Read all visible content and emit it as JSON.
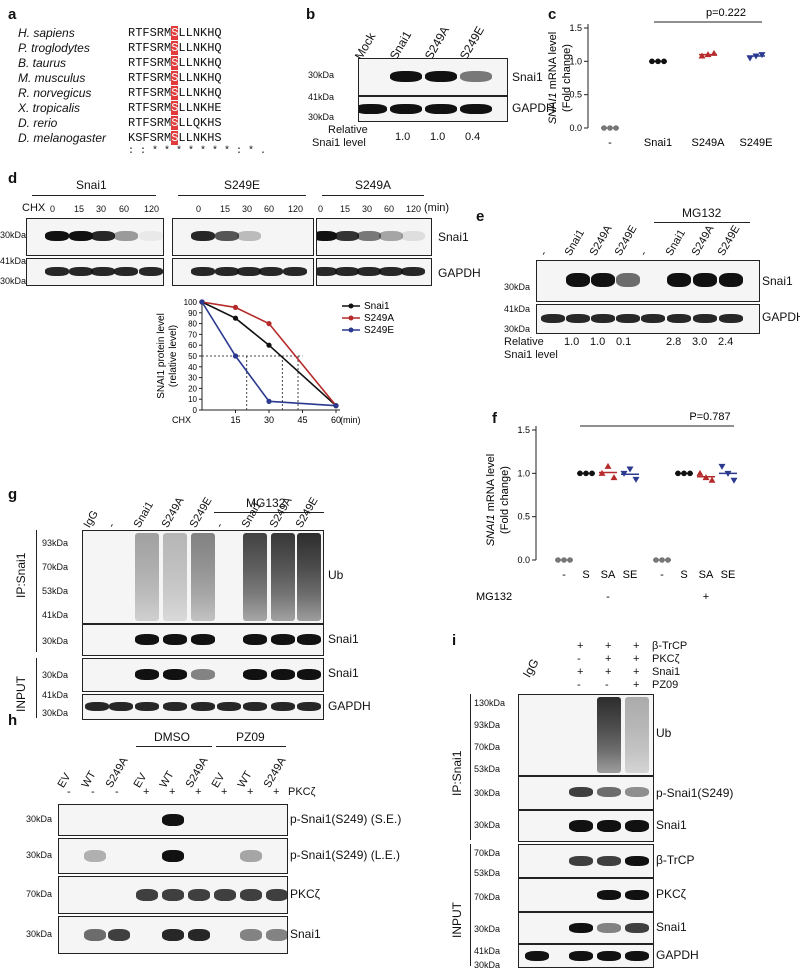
{
  "panels": {
    "a": {
      "label": "a",
      "rows": [
        {
          "species": "H. sapiens",
          "pre": "RTFSRM",
          "site": "S",
          "post": "LLNKHQ"
        },
        {
          "species": "P. troglodytes",
          "pre": "RTFSRM",
          "site": "S",
          "post": "LLNKHQ"
        },
        {
          "species": "B. taurus",
          "pre": "RTFSRM",
          "site": "S",
          "post": "LLNKHQ"
        },
        {
          "species": "M. musculus",
          "pre": "RTFSRM",
          "site": "S",
          "post": "LLNKHQ"
        },
        {
          "species": "R. norvegicus",
          "pre": "RTFSRM",
          "site": "S",
          "post": "LLNKHQ"
        },
        {
          "species": "X. tropicalis",
          "pre": "RTFSRM",
          "site": "S",
          "post": "LLNKHE"
        },
        {
          "species": "D. rerio",
          "pre": "RTFSRM",
          "site": "S",
          "post": "LLQKHS"
        },
        {
          "species": "D. melanogaster",
          "pre": "KSFSRM",
          "site": "S",
          "post": "LLNKHS"
        }
      ],
      "consensus": ": :  * * * * * * * : * ."
    },
    "b": {
      "label": "b",
      "lanes": [
        "Mock",
        "Snai1",
        "S249A",
        "S249E"
      ],
      "mw": [
        "30kDa",
        "41kDa",
        "30kDa"
      ],
      "bands": [
        "Snai1",
        "GAPDH"
      ],
      "relative_label": [
        "Relative",
        "Snai1 level"
      ],
      "relative_values": [
        "1.0",
        "1.0",
        "0.4"
      ]
    },
    "c": {
      "label": "c",
      "ylabel_gene": "SNAI1",
      "ylabel_rest": " mRNA level",
      "ylabel2": "(Fold change)",
      "yticks": [
        "0.0",
        "0.5",
        "1.0",
        "1.5"
      ],
      "categories": [
        "-",
        "Snai1",
        "S249A",
        "S249E"
      ],
      "pvalue": "p=0.222"
    },
    "d": {
      "label": "d",
      "groups": [
        "Snai1",
        "S249E",
        "S249A"
      ],
      "chx": "CHX",
      "timepoints": [
        "0",
        "15",
        "30",
        "60",
        "120"
      ],
      "unit": "(min)",
      "mw": [
        "30kDa",
        "41kDa",
        "30kDa"
      ],
      "bands": [
        "Snai1",
        "GAPDH"
      ],
      "plot_ylabel": [
        "SNAI1 protein level",
        "(relative level)"
      ],
      "plot_yticks": [
        "0",
        "10",
        "20",
        "30",
        "40",
        "50",
        "60",
        "70",
        "80",
        "90",
        "100"
      ],
      "plot_xticks": [
        "15",
        "30",
        "45",
        "60"
      ],
      "plot_xlabel": "CHX",
      "plot_xunit": "(min)"
    },
    "e": {
      "label": "e",
      "treatment": "MG132",
      "lanes": [
        "-",
        "Snai1",
        "S249A",
        "S249E",
        "-",
        "Snai1",
        "S249A",
        "S249E"
      ],
      "mw": [
        "30kDa",
        "41kDa",
        "30kDa"
      ],
      "bands": [
        "Snai1",
        "GAPDH"
      ],
      "relative_label": [
        "Relative",
        "Snai1 level"
      ],
      "relative_values": [
        "1.0",
        "1.0",
        "0.1",
        "2.8",
        "3.0",
        "2.4"
      ]
    },
    "f": {
      "label": "f",
      "ylabel_gene": "SNAI1",
      "ylabel_rest": " mRNA level",
      "ylabel2": "(Fold change)",
      "yticks": [
        "0.0",
        "0.5",
        "1.0",
        "1.5"
      ],
      "categories": [
        "-",
        "S",
        "SA",
        "SE",
        "-",
        "S",
        "SA",
        "SE"
      ],
      "treatment": "MG132",
      "treatment_states": [
        "-",
        "+"
      ],
      "pvalue": "P=0.787"
    },
    "g": {
      "label": "g",
      "treatment": "MG132",
      "lanes": [
        "IgG",
        "-",
        "Snai1",
        "S249A",
        "S249E",
        "-",
        "Snai1",
        "S249A",
        "S249E"
      ],
      "ip_label": "IP:Snai1",
      "input_label": "INPUT",
      "mw_ub": [
        "93kDa",
        "70kDa",
        "53kDa",
        "41kDa"
      ],
      "mw_single": "30kDa",
      "mw_input": [
        "30kDa",
        "41kDa",
        "30kDa"
      ],
      "bands": [
        "Ub",
        "Snai1",
        "Snai1",
        "GAPDH"
      ]
    },
    "h": {
      "label": "h",
      "groups": [
        "DMSO",
        "PZ09"
      ],
      "lanes": [
        "EV",
        "WT",
        "S249A",
        "EV",
        "WT",
        "S249A",
        "EV",
        "WT",
        "S249A"
      ],
      "pkc_label": "PKCζ",
      "pkc_states": [
        "-",
        "-",
        "-",
        "+",
        "+",
        "+",
        "+",
        "+",
        "+"
      ],
      "mw": [
        "30kDa",
        "30kDa",
        "70kDa",
        "30kDa"
      ],
      "bands": [
        "p-Snai1(S249) (S.E.)",
        "p-Snai1(S249) (L.E.)",
        "PKCζ",
        "Snai1"
      ]
    },
    "i": {
      "label": "i",
      "igg": "IgG",
      "conditions": [
        {
          "name": "β-TrCP",
          "states": [
            "+",
            "+",
            "+"
          ]
        },
        {
          "name": "PKCζ",
          "states": [
            "-",
            "+",
            "+"
          ]
        },
        {
          "name": "Snai1",
          "states": [
            "+",
            "+",
            "+"
          ]
        },
        {
          "name": "PZ09",
          "states": [
            "-",
            "-",
            "+"
          ]
        }
      ],
      "ip_label": "IP:Snai1",
      "input_label": "INPUT",
      "mw_ub": [
        "130kDa",
        "93kDa",
        "70kDa",
        "53kDa"
      ],
      "mw_ip": [
        "30kDa",
        "30kDa"
      ],
      "mw_input": [
        "70kDa",
        "53kDa",
        "70kDa",
        "30kDa",
        "41kDa",
        "30kDa"
      ],
      "bands": [
        "Ub",
        "p-Snai1(S249)",
        "Snai1",
        "β-TrCP",
        "PKCζ",
        "Snai1",
        "GAPDH"
      ]
    }
  },
  "chart_data": [
    {
      "type": "scatter",
      "panel": "c",
      "categories": [
        "-",
        "Snai1",
        "S249A",
        "S249E"
      ],
      "series": [
        {
          "values": [
            [
              0.0,
              0.0,
              0.0
            ],
            [
              1.0,
              1.0,
              1.0
            ],
            [
              1.08,
              1.1,
              1.12
            ],
            [
              1.05,
              1.08,
              1.1
            ]
          ]
        }
      ],
      "means": [
        0.0,
        1.0,
        1.1,
        1.08
      ],
      "ylim": [
        0,
        1.5
      ],
      "annotation": "p=0.222"
    },
    {
      "type": "line",
      "panel": "d",
      "x": [
        0,
        15,
        30,
        60
      ],
      "series": [
        {
          "name": "Snai1",
          "color": "#111111",
          "values": [
            100,
            85,
            60,
            4
          ]
        },
        {
          "name": "S249A",
          "color": "#b52b2b",
          "values": [
            100,
            95,
            80,
            4
          ]
        },
        {
          "name": "S249E",
          "color": "#2b3a8f",
          "values": [
            100,
            50,
            8,
            4
          ]
        }
      ],
      "xlabel": "CHX",
      "xunit": "(min)",
      "ylabel": "SNAI1 protein level (relative level)",
      "ylim": [
        0,
        100
      ],
      "reference_line": 50
    },
    {
      "type": "scatter",
      "panel": "f",
      "categories": [
        "-",
        "S",
        "SA",
        "SE",
        "-",
        "S",
        "SA",
        "SE"
      ],
      "series": [
        {
          "values": [
            [
              0.0,
              0.0,
              0.0
            ],
            [
              1.0,
              1.0,
              1.0
            ],
            [
              1.0,
              1.08,
              0.95
            ],
            [
              1.0,
              1.05,
              0.93
            ],
            [
              0.0,
              0.0,
              0.0
            ],
            [
              1.0,
              1.0,
              1.0
            ],
            [
              1.0,
              0.95,
              0.92
            ],
            [
              1.08,
              1.0,
              0.92
            ]
          ]
        }
      ],
      "means": [
        0.0,
        1.0,
        1.01,
        0.99,
        0.0,
        1.0,
        0.96,
        1.0
      ],
      "ylim": [
        0,
        1.5
      ],
      "annotation": "P=0.787"
    }
  ]
}
